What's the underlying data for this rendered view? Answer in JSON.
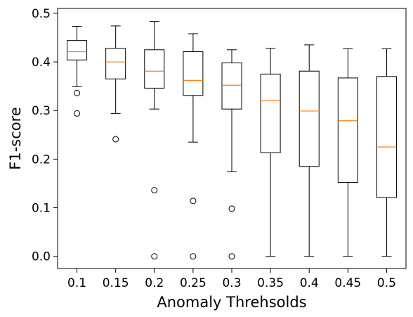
{
  "chart_data": {
    "type": "boxplot",
    "title": "",
    "xlabel": "Anomaly Threhsolds",
    "ylabel": "F1-score",
    "categories": [
      "0.1",
      "0.15",
      "0.2",
      "0.25",
      "0.3",
      "0.35",
      "0.4",
      "0.45",
      "0.5"
    ],
    "ylim": [
      -0.025,
      0.51
    ],
    "yticks": [
      0.0,
      0.1,
      0.2,
      0.3,
      0.4,
      0.5
    ],
    "ytick_labels": [
      "0.0",
      "0.1",
      "0.2",
      "0.3",
      "0.4",
      "0.5"
    ],
    "grid": false,
    "boxes": [
      {
        "category": "0.1",
        "whisker_low": 0.349,
        "q1": 0.404,
        "median": 0.421,
        "q3": 0.444,
        "whisker_high": 0.473,
        "outliers": [
          0.336,
          0.294
        ]
      },
      {
        "category": "0.15",
        "whisker_low": 0.294,
        "q1": 0.365,
        "median": 0.4,
        "q3": 0.428,
        "whisker_high": 0.474,
        "outliers": [
          0.241
        ]
      },
      {
        "category": "0.2",
        "whisker_low": 0.303,
        "q1": 0.346,
        "median": 0.381,
        "q3": 0.425,
        "whisker_high": 0.483,
        "outliers": [
          0.136,
          0.0
        ]
      },
      {
        "category": "0.25",
        "whisker_low": 0.235,
        "q1": 0.331,
        "median": 0.362,
        "q3": 0.421,
        "whisker_high": 0.458,
        "outliers": [
          0.114,
          0.0
        ]
      },
      {
        "category": "0.3",
        "whisker_low": 0.174,
        "q1": 0.303,
        "median": 0.352,
        "q3": 0.398,
        "whisker_high": 0.425,
        "outliers": [
          0.098,
          0.0
        ]
      },
      {
        "category": "0.35",
        "whisker_low": 0.0,
        "q1": 0.213,
        "median": 0.32,
        "q3": 0.375,
        "whisker_high": 0.428,
        "outliers": []
      },
      {
        "category": "0.4",
        "whisker_low": 0.0,
        "q1": 0.185,
        "median": 0.299,
        "q3": 0.381,
        "whisker_high": 0.435,
        "outliers": []
      },
      {
        "category": "0.45",
        "whisker_low": 0.0,
        "q1": 0.152,
        "median": 0.279,
        "q3": 0.367,
        "whisker_high": 0.427,
        "outliers": []
      },
      {
        "category": "0.5",
        "whisker_low": 0.0,
        "q1": 0.121,
        "median": 0.225,
        "q3": 0.37,
        "whisker_high": 0.427,
        "outliers": []
      }
    ],
    "colors": {
      "box": "#000000",
      "median": "#ff7f0e",
      "outlier": "#000000"
    }
  }
}
